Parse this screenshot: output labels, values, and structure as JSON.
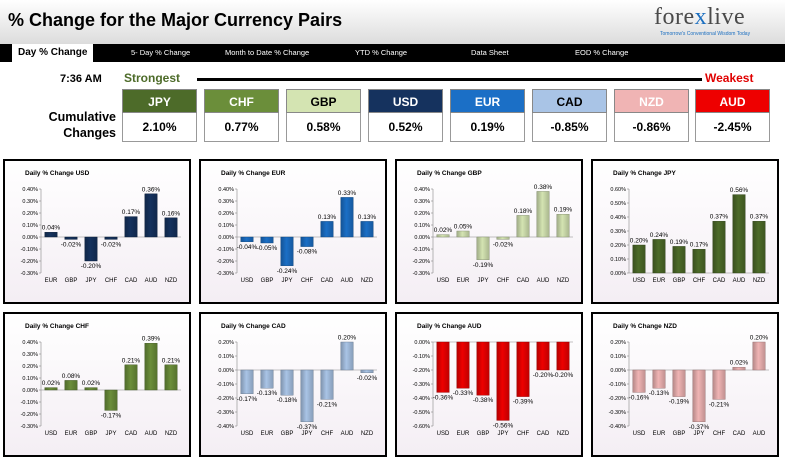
{
  "header": {
    "title": "% Change for the Major Currency Pairs"
  },
  "logo": {
    "text_a": "fore",
    "text_x": "x",
    "text_b": "live",
    "tagline": "Tomorrow's Conventional Wisdom Today"
  },
  "tabs": [
    {
      "label": "Day % Change",
      "active": true
    },
    {
      "label": "5- Day % Change",
      "active": false
    },
    {
      "label": "Month to Date % Change",
      "active": false
    },
    {
      "label": "YTD % Change",
      "active": false
    },
    {
      "label": "Data Sheet",
      "active": false
    },
    {
      "label": "EOD % Change",
      "active": false
    }
  ],
  "time": "7:36 AM",
  "rank_labels": {
    "strongest": "Strongest",
    "weakest": "Weakest"
  },
  "cumulative_label": "Cumulative Changes",
  "currencies": [
    {
      "name": "JPY",
      "value": "2.10%",
      "color": "#4d6b29",
      "text_color": "#ffffff"
    },
    {
      "name": "CHF",
      "value": "0.77%",
      "color": "#6b8e3a",
      "text_color": "#ffffff"
    },
    {
      "name": "GBP",
      "value": "0.58%",
      "color": "#d4e4b2",
      "text_color": "#000000"
    },
    {
      "name": "USD",
      "value": "0.52%",
      "color": "#15325e",
      "text_color": "#ffffff"
    },
    {
      "name": "EUR",
      "value": "0.19%",
      "color": "#1b6fc6",
      "text_color": "#ffffff"
    },
    {
      "name": "CAD",
      "value": "-0.85%",
      "color": "#a9c4e6",
      "text_color": "#000000"
    },
    {
      "name": "NZD",
      "value": "-0.86%",
      "color": "#f0b4b4",
      "text_color": "#ffffff"
    },
    {
      "name": "AUD",
      "value": "-2.45%",
      "color": "#ee0000",
      "text_color": "#ffffff"
    }
  ],
  "chart_data": [
    {
      "type": "bar",
      "title": "Daily % Change USD",
      "categories": [
        "EUR",
        "GBP",
        "JPY",
        "CHF",
        "CAD",
        "AUD",
        "NZD"
      ],
      "values": [
        0.04,
        -0.02,
        -0.2,
        -0.02,
        0.17,
        0.36,
        0.16
      ],
      "data_labels": [
        "0.04%",
        "-0.02%",
        "-0.20%",
        "-0.02%",
        "0.17%",
        "0.36%",
        "0.16%"
      ],
      "yticks": [
        "0.40%",
        "0.30%",
        "0.20%",
        "0.10%",
        "0.00%",
        "-0.10%",
        "-0.20%",
        "-0.30%"
      ],
      "ylim": [
        -0.3,
        0.4
      ],
      "color": "#15325e"
    },
    {
      "type": "bar",
      "title": "Daily % Change EUR",
      "categories": [
        "USD",
        "GBP",
        "JPY",
        "CHF",
        "CAD",
        "AUD",
        "NZD"
      ],
      "values": [
        -0.04,
        -0.05,
        -0.24,
        -0.08,
        0.13,
        0.33,
        0.13
      ],
      "data_labels": [
        "-0.04%",
        "-0.05%",
        "-0.24%",
        "-0.08%",
        "0.13%",
        "0.33%",
        "0.13%"
      ],
      "yticks": [
        "0.40%",
        "0.30%",
        "0.20%",
        "0.10%",
        "0.00%",
        "-0.10%",
        "-0.20%",
        "-0.30%"
      ],
      "ylim": [
        -0.3,
        0.4
      ],
      "color": "#1b6fc6"
    },
    {
      "type": "bar",
      "title": "Daily % Change GBP",
      "categories": [
        "USD",
        "EUR",
        "JPY",
        "CHF",
        "CAD",
        "AUD",
        "NZD"
      ],
      "values": [
        0.02,
        0.05,
        -0.19,
        -0.02,
        0.18,
        0.38,
        0.19
      ],
      "data_labels": [
        "0.02%",
        "0.05%",
        "-0.19%",
        "-0.02%",
        "0.18%",
        "0.38%",
        "0.19%"
      ],
      "yticks": [
        "0.40%",
        "0.30%",
        "0.20%",
        "0.10%",
        "0.00%",
        "-0.10%",
        "-0.20%",
        "-0.30%"
      ],
      "ylim": [
        -0.3,
        0.4
      ],
      "color": "#d4e4b2"
    },
    {
      "type": "bar",
      "title": "Daily % Change JPY",
      "categories": [
        "USD",
        "EUR",
        "GBP",
        "CHF",
        "CAD",
        "AUD",
        "NZD"
      ],
      "values": [
        0.2,
        0.24,
        0.19,
        0.17,
        0.37,
        0.56,
        0.37
      ],
      "data_labels": [
        "0.20%",
        "0.24%",
        "0.19%",
        "0.17%",
        "0.37%",
        "0.56%",
        "0.37%"
      ],
      "yticks": [
        "0.60%",
        "0.50%",
        "0.40%",
        "0.30%",
        "0.20%",
        "0.10%",
        "0.00%"
      ],
      "ylim": [
        0.0,
        0.6
      ],
      "color": "#4d6b29"
    },
    {
      "type": "bar",
      "title": "Daily % Change CHF",
      "categories": [
        "USD",
        "EUR",
        "GBP",
        "JPY",
        "CAD",
        "AUD",
        "NZD"
      ],
      "values": [
        0.02,
        0.08,
        0.02,
        -0.17,
        0.21,
        0.39,
        0.21
      ],
      "data_labels": [
        "0.02%",
        "0.08%",
        "0.02%",
        "-0.17%",
        "0.21%",
        "0.39%",
        "0.21%"
      ],
      "yticks": [
        "0.40%",
        "0.30%",
        "0.20%",
        "0.10%",
        "0.00%",
        "-0.10%",
        "-0.20%",
        "-0.30%"
      ],
      "ylim": [
        -0.3,
        0.4
      ],
      "color": "#6b8e3a"
    },
    {
      "type": "bar",
      "title": "Daily % Change CAD",
      "categories": [
        "USD",
        "EUR",
        "GBP",
        "JPY",
        "CHF",
        "AUD",
        "NZD"
      ],
      "values": [
        -0.17,
        -0.13,
        -0.18,
        -0.37,
        -0.21,
        0.2,
        -0.02
      ],
      "data_labels": [
        "-0.17%",
        "-0.13%",
        "-0.18%",
        "-0.37%",
        "-0.21%",
        "0.20%",
        "-0.02%"
      ],
      "yticks": [
        "0.20%",
        "0.10%",
        "0.00%",
        "-0.10%",
        "-0.20%",
        "-0.30%",
        "-0.40%"
      ],
      "ylim": [
        -0.4,
        0.2
      ],
      "color": "#a9c4e6"
    },
    {
      "type": "bar",
      "title": "Daily % Change AUD",
      "categories": [
        "USD",
        "EUR",
        "GBP",
        "JPY",
        "CHF",
        "CAD",
        "NZD"
      ],
      "values": [
        -0.36,
        -0.33,
        -0.38,
        -0.56,
        -0.39,
        -0.2,
        -0.2
      ],
      "data_labels": [
        "-0.36%",
        "-0.33%",
        "-0.38%",
        "-0.56%",
        "-0.39%",
        "-0.20%",
        "-0.20%"
      ],
      "yticks": [
        "0.00%",
        "-0.10%",
        "-0.20%",
        "-0.30%",
        "-0.40%",
        "-0.50%",
        "-0.60%"
      ],
      "ylim": [
        -0.6,
        0.0
      ],
      "color": "#ee0000"
    },
    {
      "type": "bar",
      "title": "Daily % Change NZD",
      "categories": [
        "USD",
        "EUR",
        "GBP",
        "JPY",
        "CHF",
        "CAD",
        "AUD"
      ],
      "values": [
        -0.16,
        -0.13,
        -0.19,
        -0.37,
        -0.21,
        0.02,
        0.2
      ],
      "data_labels": [
        "-0.16%",
        "-0.13%",
        "-0.19%",
        "-0.37%",
        "-0.21%",
        "0.02%",
        "0.20%"
      ],
      "yticks": [
        "0.20%",
        "0.10%",
        "0.00%",
        "-0.10%",
        "-0.20%",
        "-0.30%",
        "-0.40%"
      ],
      "ylim": [
        -0.4,
        0.2
      ],
      "color": "#f0b4b4"
    }
  ]
}
